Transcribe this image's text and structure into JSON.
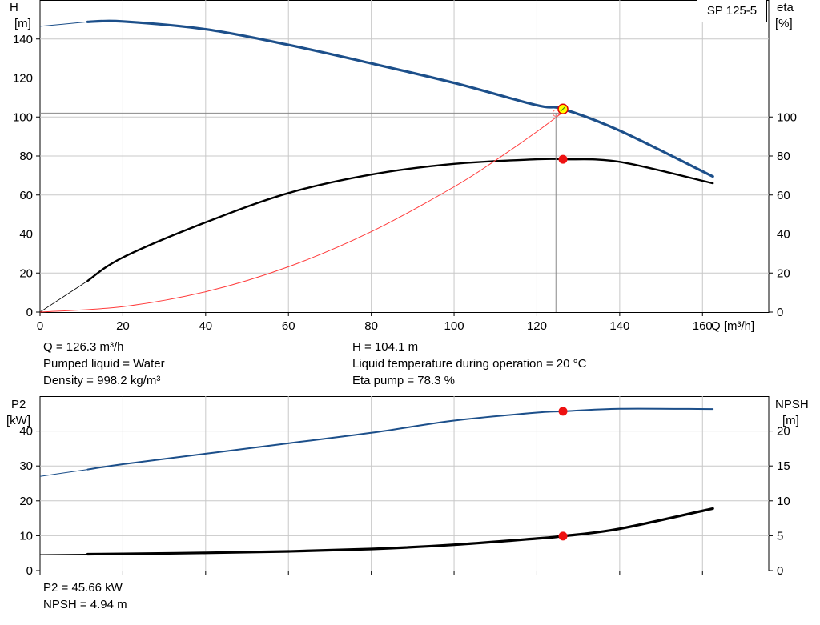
{
  "chart_data": [
    {
      "type": "line",
      "model_label": "SP 125-5",
      "xlabel": "Q [m³/h]",
      "ylabel_left": [
        "H",
        "[m]"
      ],
      "ylabel_right": [
        "eta",
        "[%]"
      ],
      "xlim": [
        0,
        176
      ],
      "ylim_left": [
        0,
        160
      ],
      "ylim_right": [
        0,
        160
      ],
      "xticks": [
        0,
        20,
        40,
        60,
        80,
        100,
        120,
        140,
        160
      ],
      "yticks_left": [
        0,
        20,
        40,
        60,
        80,
        100,
        120,
        140
      ],
      "yticks_right": [
        0,
        20,
        40,
        60,
        80,
        100
      ],
      "grid": true,
      "series": [
        {
          "key": "head",
          "color": "#1c4f8a",
          "x": [
            0,
            11.5,
            20,
            40,
            60,
            80,
            100,
            120,
            126.3,
            140,
            162.5
          ],
          "y": [
            146.5,
            148.8,
            149,
            145,
            137,
            127.5,
            117.5,
            106,
            104.1,
            93,
            69.5
          ]
        },
        {
          "key": "efficiency",
          "color": "#000000",
          "x": [
            0,
            11.5,
            20,
            40,
            60,
            80,
            100,
            120,
            126.3,
            140,
            162.5
          ],
          "y": [
            0,
            16,
            28,
            46,
            61,
            70.5,
            76,
            78.3,
            78.3,
            77,
            66
          ]
        },
        {
          "key": "system_curve",
          "color": "#ff3b3b",
          "x": [
            0,
            20,
            40,
            60,
            80,
            100,
            110,
            120,
            126.3
          ],
          "y": [
            0,
            2.8,
            10.4,
            23.2,
            41.2,
            64.2,
            77.8,
            92.5,
            102.5
          ]
        }
      ],
      "operating_point": {
        "Q": 126.3,
        "H": 104.1,
        "eta": 78.3
      }
    },
    {
      "type": "line",
      "xlabel": "",
      "ylabel_left": [
        "P2",
        "[kW]"
      ],
      "ylabel_right": [
        "NPSH",
        "[m]"
      ],
      "xlim": [
        0,
        176
      ],
      "ylim_left": [
        0,
        50
      ],
      "ylim_right": [
        0,
        25
      ],
      "xticks": [
        0,
        20,
        40,
        60,
        80,
        100,
        120,
        140,
        160
      ],
      "yticks_left": [
        0,
        10,
        20,
        30,
        40
      ],
      "yticks_right": [
        0,
        5,
        10,
        15,
        20
      ],
      "grid": true,
      "series": [
        {
          "key": "p2",
          "color": "#1c4f8a",
          "x": [
            0,
            11.5,
            20,
            40,
            60,
            80,
            100,
            120,
            126.3,
            140,
            162.5
          ],
          "y": [
            27,
            29,
            30.5,
            33.5,
            36.5,
            39.5,
            43,
            45.3,
            45.66,
            46.4,
            46.3
          ]
        },
        {
          "key": "npsh",
          "color": "#000000",
          "x": [
            0,
            11.5,
            20,
            40,
            60,
            80,
            100,
            120,
            126.3,
            140,
            162.5
          ],
          "y": [
            2.3,
            2.35,
            2.4,
            2.55,
            2.75,
            3.1,
            3.7,
            4.6,
            4.94,
            6.0,
            8.9
          ]
        }
      ],
      "operating_point": {
        "Q": 126.3,
        "P2": 45.66,
        "NPSH": 4.94
      }
    }
  ],
  "info_top": {
    "q": "Q = 126.3 m³/h",
    "liquid": "Pumped liquid = Water",
    "density": "Density = 998.2 kg/m³",
    "h": "H = 104.1 m",
    "temp": "Liquid temperature during operation = 20 °C",
    "eta": "Eta pump = 78.3 %"
  },
  "info_bottom": {
    "p2": "P2 = 45.66 kW",
    "npsh": "NPSH = 4.94 m"
  }
}
